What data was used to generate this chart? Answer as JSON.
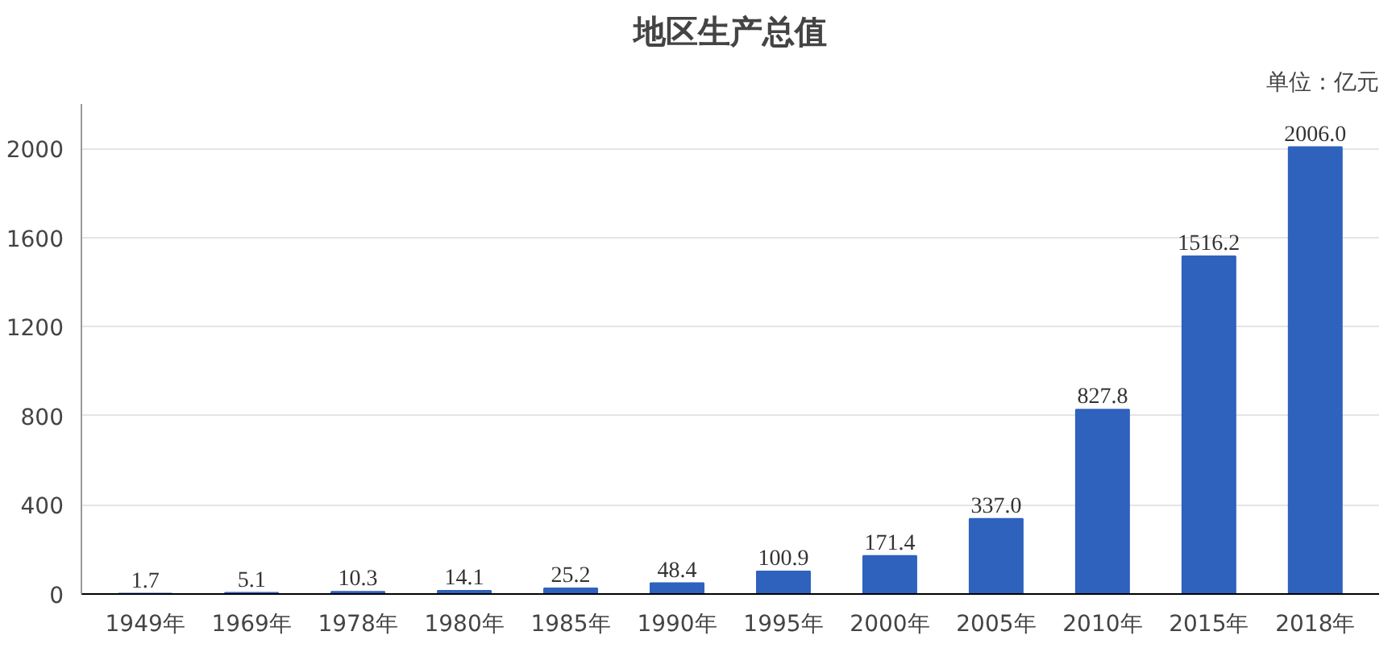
{
  "chart_data": {
    "type": "bar",
    "title": "地区生产总值",
    "annotations": [
      "单位：亿元"
    ],
    "categories": [
      "1949年",
      "1969年",
      "1978年",
      "1980年",
      "1985年",
      "1990年",
      "1995年",
      "2000年",
      "2005年",
      "2010年",
      "2015年",
      "2018年"
    ],
    "values": [
      1.7,
      5.1,
      10.3,
      14.1,
      25.2,
      48.4,
      100.9,
      171.4,
      337.0,
      827.8,
      1516.2,
      2006.0
    ],
    "value_labels": [
      "1.7",
      "5.1",
      "10.3",
      "14.1",
      "25.2",
      "48.4",
      "100.9",
      "171.4",
      "337.0",
      "827.8",
      "1516.2",
      "2006.0"
    ],
    "color": "#2f62bd",
    "ylim": [
      0,
      2200
    ],
    "yticks": [
      0,
      400,
      800,
      1200,
      1600,
      2000
    ],
    "grid": "y"
  }
}
